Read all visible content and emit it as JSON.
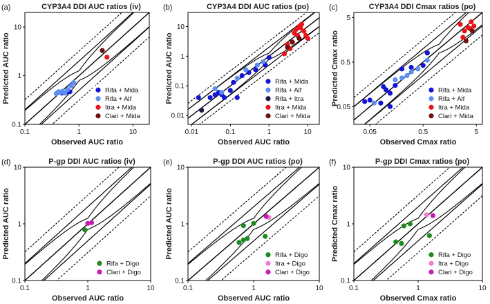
{
  "figure": {
    "colors": {
      "Rifa + Mida": "#1414d6",
      "Rifa + Alf": "#5b8ff0",
      "Rifa + Itra": "#1a1a4a",
      "Itra + Mida": "#e8141a",
      "Clari + Mida": "#6e1010",
      "Rifa + Digo": "#1f8a1f",
      "Itra + Digo": "#ee7fcf",
      "Clari + Digo": "#c41eb0"
    }
  },
  "chart_data": [
    {
      "type": "scatter",
      "letter": "(a)",
      "title": "CYP3A4 DDI AUC ratios (iv)",
      "xlabel": "Observed AUC ratio",
      "ylabel": "Predicted AUC ratio",
      "log_scale": true,
      "xlim": [
        0.1,
        20
      ],
      "ylim": [
        0.1,
        20
      ],
      "xticks": [
        {
          "v": 0.1,
          "label": "0.1"
        },
        {
          "v": 1,
          "label": "1"
        },
        {
          "v": 10,
          "label": "10"
        }
      ],
      "yticks": [
        {
          "v": 0.1,
          "label": "0.1"
        },
        {
          "v": 1,
          "label": "1"
        },
        {
          "v": 10,
          "label": "10"
        }
      ],
      "legend_position": "bottom-right",
      "series": [
        {
          "name": "Rifa + Mida",
          "x": [
            0.6,
            0.68,
            0.48
          ],
          "y": [
            0.46,
            0.47,
            0.44
          ]
        },
        {
          "name": "Rifa + Alf",
          "x": [
            0.38,
            0.42,
            0.45,
            0.5,
            0.55,
            0.62,
            0.72,
            0.8
          ],
          "y": [
            0.43,
            0.47,
            0.45,
            0.48,
            0.44,
            0.52,
            0.62,
            0.72
          ]
        },
        {
          "name": "Itra + Mida",
          "x": [
            3.3
          ],
          "y": [
            2.4
          ]
        },
        {
          "name": "Clari + Mida",
          "x": [
            2.7
          ],
          "y": [
            3.3
          ]
        }
      ]
    },
    {
      "type": "scatter",
      "letter": "(b)",
      "title": "CYP3A4 DDI AUC ratios (po)",
      "xlabel": "Observed AUC ratio",
      "ylabel": "Predicted AUC ratio",
      "log_scale": true,
      "xlim": [
        0.008,
        20
      ],
      "ylim": [
        0.005,
        30
      ],
      "xticks": [
        {
          "v": 0.01,
          "label": "0.01"
        },
        {
          "v": 0.1,
          "label": "0.1"
        },
        {
          "v": 1,
          "label": "1"
        },
        {
          "v": 10,
          "label": "10"
        }
      ],
      "yticks": [
        {
          "v": 0.01,
          "label": "0.01"
        },
        {
          "v": 0.1,
          "label": "0.1"
        },
        {
          "v": 1,
          "label": "1"
        },
        {
          "v": 10,
          "label": "10"
        }
      ],
      "legend_position": "bottom-right",
      "series": [
        {
          "name": "Rifa + Mida",
          "x": [
            0.015,
            0.03,
            0.04,
            0.05,
            0.06,
            0.07,
            0.1,
            0.12,
            0.15,
            0.2,
            0.3,
            0.45,
            0.8,
            1.0
          ],
          "y": [
            0.04,
            0.04,
            0.05,
            0.06,
            0.05,
            0.04,
            0.07,
            0.13,
            0.04,
            0.22,
            0.28,
            0.35,
            0.5,
            0.9
          ]
        },
        {
          "name": "Rifa + Alf",
          "x": [
            0.04,
            0.06,
            0.15,
            0.25,
            0.5,
            0.7
          ],
          "y": [
            0.08,
            0.06,
            0.18,
            0.35,
            0.5,
            0.65
          ]
        },
        {
          "name": "Rifa + Itra",
          "x": [
            0.018
          ],
          "y": [
            0.015
          ]
        },
        {
          "name": "Itra + Mida",
          "x": [
            2.5,
            3,
            4,
            4.5,
            5,
            5.5,
            6,
            7,
            8,
            9,
            3.5,
            6.5,
            10
          ],
          "y": [
            1.2,
            2.5,
            3,
            6,
            8,
            5,
            10,
            12,
            7,
            5,
            1.8,
            9,
            4
          ]
        },
        {
          "name": "Clari + Mida",
          "x": [
            3,
            4,
            6
          ],
          "y": [
            2,
            3,
            4
          ]
        }
      ]
    },
    {
      "type": "scatter",
      "letter": "(c)",
      "title": "CYP3A4 DDI Cmax ratios (po)",
      "xlabel": "Observed Cmax ratio",
      "ylabel": "Predicted Cmax ratio",
      "log_scale": true,
      "xlim": [
        0.025,
        6.5
      ],
      "ylim": [
        0.02,
        6.5
      ],
      "xticks": [
        {
          "v": 0.05,
          "label": "0.05"
        },
        {
          "v": 0.5,
          "label": "0.5"
        },
        {
          "v": 5,
          "label": "5"
        }
      ],
      "yticks": [
        {
          "v": 0.05,
          "label": "0.05"
        },
        {
          "v": 0.5,
          "label": "0.5"
        },
        {
          "v": 5,
          "label": "5"
        }
      ],
      "legend_position": "bottom-right",
      "series": [
        {
          "name": "Rifa + Mida",
          "x": [
            0.04,
            0.05,
            0.08,
            0.1,
            0.12,
            0.15,
            0.2,
            0.3,
            0.5,
            0.6,
            0.12,
            0.09
          ],
          "y": [
            0.065,
            0.07,
            0.06,
            0.12,
            0.1,
            0.15,
            0.35,
            0.38,
            0.42,
            0.8,
            0.05,
            0.14
          ]
        },
        {
          "name": "Rifa + Alf",
          "x": [
            0.06,
            0.15,
            0.2,
            0.25,
            0.3,
            0.4,
            0.6
          ],
          "y": [
            0.06,
            0.2,
            0.22,
            0.25,
            0.3,
            0.35,
            0.55
          ]
        },
        {
          "name": "Itra + Mida",
          "x": [
            2.5,
            3,
            3.5,
            4,
            4.5,
            2.8,
            3.8
          ],
          "y": [
            3.5,
            2.5,
            3,
            4,
            3.2,
            1.8,
            2.8
          ]
        },
        {
          "name": "Clari + Mida",
          "x": [
            3.2,
            4.2
          ],
          "y": [
            1.5,
            2.5
          ]
        }
      ]
    },
    {
      "type": "scatter",
      "letter": "(d)",
      "title": "P-gp DDI AUC ratios (iv)",
      "xlabel": "Observed AUC ratio",
      "ylabel": "Predicted AUC ratio",
      "log_scale": true,
      "xlim": [
        0.1,
        10
      ],
      "ylim": [
        0.1,
        10
      ],
      "xticks": [
        {
          "v": 0.1,
          "label": "0.1"
        },
        {
          "v": 1,
          "label": "1"
        },
        {
          "v": 10,
          "label": "10"
        }
      ],
      "yticks": [
        {
          "v": 0.1,
          "label": "0.1"
        },
        {
          "v": 1,
          "label": "1"
        },
        {
          "v": 10,
          "label": "10"
        }
      ],
      "legend_position": "bottom-right",
      "series": [
        {
          "name": "Rifa + Digo",
          "x": [
            0.9
          ],
          "y": [
            0.78
          ]
        },
        {
          "name": "Clari + Digo",
          "x": [
            1.0,
            1.15
          ],
          "y": [
            1.02,
            1.05
          ]
        }
      ]
    },
    {
      "type": "scatter",
      "letter": "(e)",
      "title": "P-gp DDI AUC ratios (po)",
      "xlabel": "Observed AUC ratio",
      "ylabel": "Predicted AUC ratio",
      "log_scale": true,
      "xlim": [
        0.1,
        10
      ],
      "ylim": [
        0.1,
        10
      ],
      "xticks": [
        {
          "v": 0.1,
          "label": "0.1"
        },
        {
          "v": 1,
          "label": "1"
        },
        {
          "v": 10,
          "label": "10"
        }
      ],
      "yticks": [
        {
          "v": 0.1,
          "label": "0.1"
        },
        {
          "v": 1,
          "label": "1"
        },
        {
          "v": 10,
          "label": "10"
        }
      ],
      "legend_position": "bottom-right",
      "series": [
        {
          "name": "Rifa + Digo",
          "x": [
            0.6,
            0.7,
            0.8,
            0.7,
            1.0,
            1.5
          ],
          "y": [
            0.47,
            0.52,
            0.55,
            0.93,
            1.02,
            0.6
          ]
        },
        {
          "name": "Itra + Digo",
          "x": [
            1.7
          ],
          "y": [
            1.3
          ]
        },
        {
          "name": "Clari + Digo",
          "x": [
            1.55
          ],
          "y": [
            1.35
          ]
        }
      ]
    },
    {
      "type": "scatter",
      "letter": "(f)",
      "title": "P-gp DDI Cmax ratios (po)",
      "xlabel": "Observed Cmax ratio",
      "ylabel": "Predicted Cmax ratio",
      "log_scale": true,
      "xlim": [
        0.1,
        10
      ],
      "ylim": [
        0.1,
        10
      ],
      "xticks": [
        {
          "v": 0.1,
          "label": "0.1"
        },
        {
          "v": 1,
          "label": "1"
        },
        {
          "v": 10,
          "label": "10"
        }
      ],
      "yticks": [
        {
          "v": 0.1,
          "label": "0.1"
        },
        {
          "v": 1,
          "label": "1"
        },
        {
          "v": 10,
          "label": "10"
        }
      ],
      "legend_position": "bottom-right",
      "series": [
        {
          "name": "Rifa + Digo",
          "x": [
            0.45,
            0.55,
            0.6,
            0.75,
            1.5
          ],
          "y": [
            0.48,
            0.45,
            0.92,
            1.0,
            0.62
          ]
        },
        {
          "name": "Itra + Digo",
          "x": [
            1.35
          ],
          "y": [
            1.45
          ]
        },
        {
          "name": "Clari + Digo",
          "x": [
            1.7
          ],
          "y": [
            1.4
          ]
        }
      ]
    }
  ]
}
